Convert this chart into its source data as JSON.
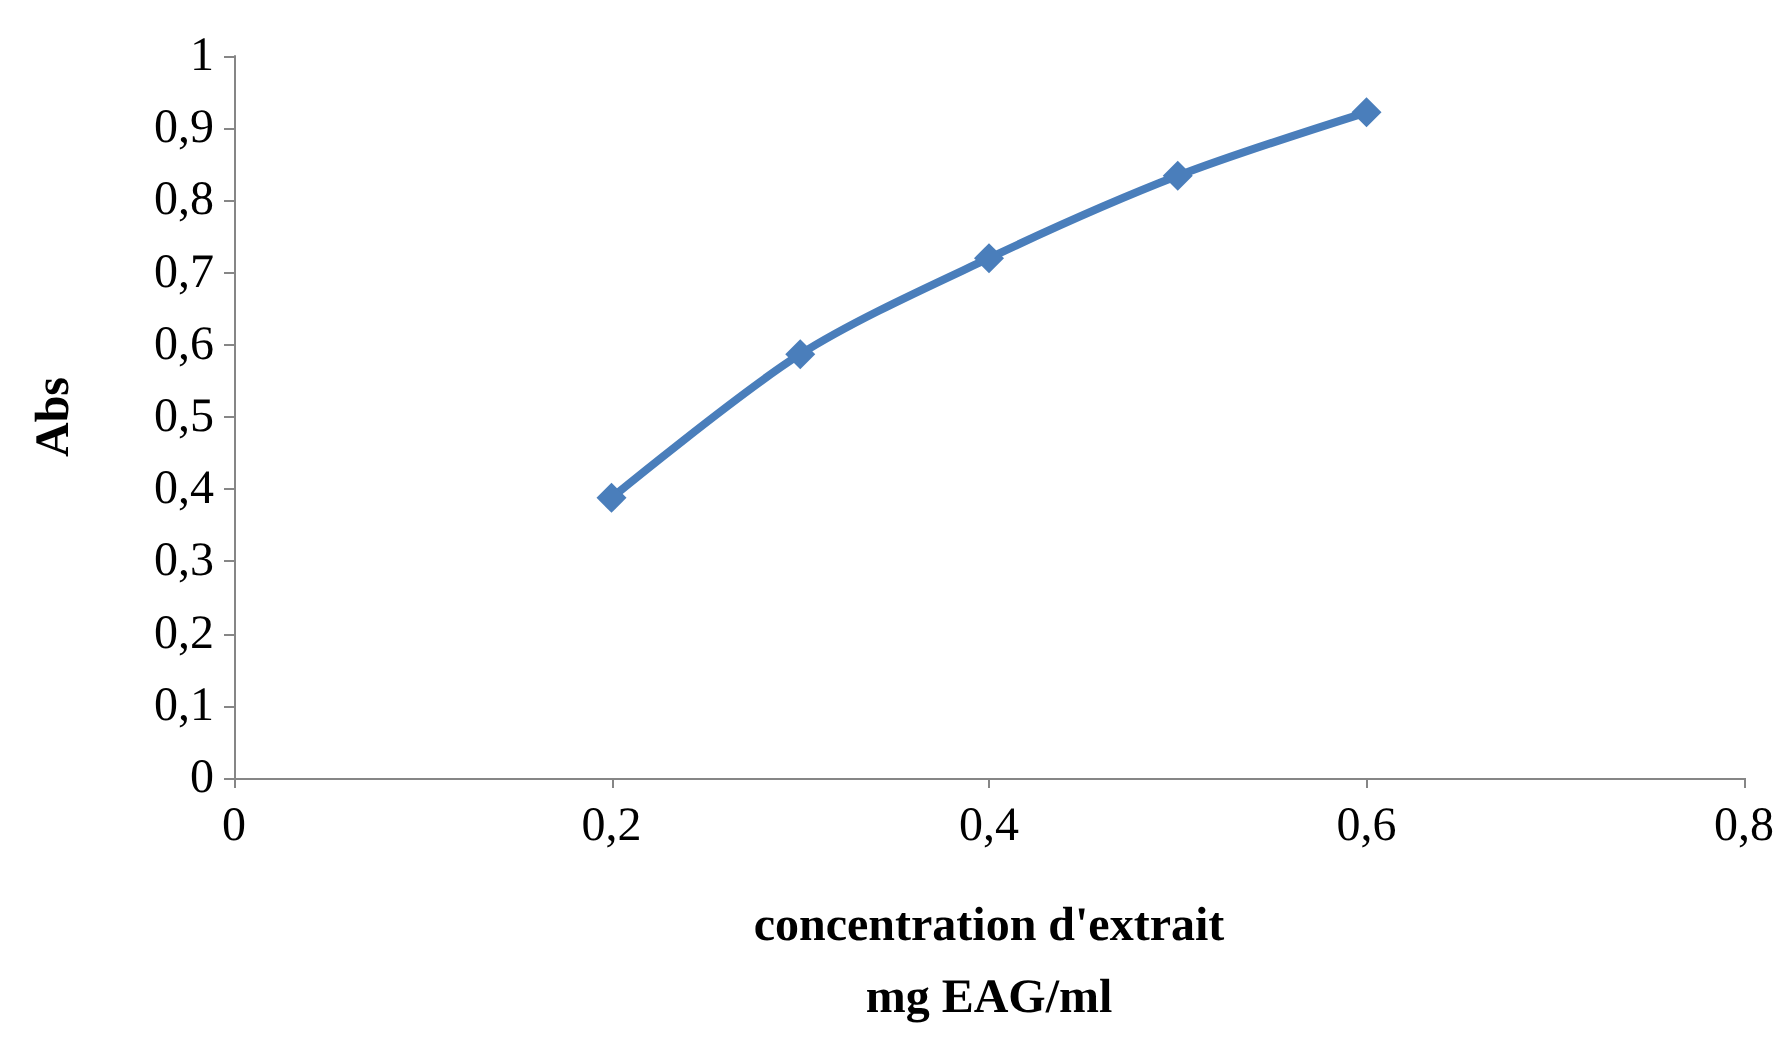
{
  "chart_data": {
    "type": "line",
    "xlabel": "concentration d'extrait\nmg EAG/ml",
    "ylabel": "Abs",
    "x": [
      0.2,
      0.3,
      0.4,
      0.5,
      0.6
    ],
    "series": [
      {
        "color": "#4a7ebb",
        "values": [
          0.388,
          0.587,
          0.72,
          0.834,
          0.922
        ]
      }
    ],
    "xlim": [
      0,
      0.8
    ],
    "xticks": [
      0,
      {
        "value": 0.2,
        "label": "0,2"
      },
      {
        "value": 0.4,
        "label": "0,4"
      },
      {
        "value": 0.6,
        "label": "0,6"
      },
      {
        "value": 0.8,
        "label": "0,8"
      }
    ],
    "ylim": [
      0,
      1
    ],
    "yticks": [
      0,
      {
        "value": 0.1,
        "label": "0,1"
      },
      {
        "value": 0.2,
        "label": "0,2"
      },
      {
        "value": 0.3,
        "label": "0,3"
      },
      {
        "value": 0.4,
        "label": "0,4"
      },
      {
        "value": 0.5,
        "label": "0,5"
      },
      {
        "value": 0.6,
        "label": "0,6"
      },
      {
        "value": 0.7,
        "label": "0,7"
      },
      {
        "value": 0.8,
        "label": "0,8"
      },
      {
        "value": 0.9,
        "label": "0,9"
      },
      1
    ],
    "marker": "diamond",
    "line_style": "solid"
  }
}
